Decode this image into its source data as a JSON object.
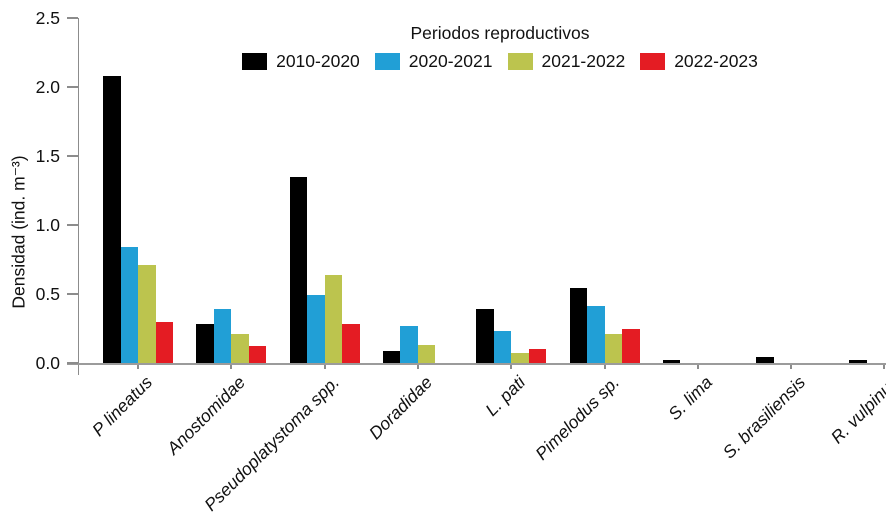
{
  "chart_data": {
    "type": "bar",
    "legend_title": "Periodos reproductivos",
    "ylabel": "Densidad (ind. m⁻³)",
    "ylim": [
      0,
      2.5
    ],
    "ytick_labels": [
      "0.0",
      "0.5",
      "1.0",
      "1.5",
      "2.0",
      "2.5"
    ],
    "grid": false,
    "legend_position": "top-center",
    "categories": [
      "P lineatus",
      "Anostomidae",
      "Pseudoplatystoma spp.",
      "Doradidae",
      "L. pati",
      "Pimelodus sp.",
      "S. lima",
      "S. brasiliensis",
      "R. vulpinus"
    ],
    "series": [
      {
        "name": "2010-2020",
        "color": "#000000",
        "values": [
          2.08,
          0.28,
          1.35,
          0.09,
          0.39,
          0.54,
          0.02,
          0.04,
          0.02
        ]
      },
      {
        "name": "2020-2021",
        "color": "#219FD6",
        "values": [
          0.84,
          0.39,
          0.49,
          0.27,
          0.23,
          0.41,
          0,
          0,
          0
        ]
      },
      {
        "name": "2021-2022",
        "color": "#BCC44E",
        "values": [
          0.71,
          0.21,
          0.64,
          0.13,
          0.07,
          0.21,
          0,
          0,
          0
        ]
      },
      {
        "name": "2022-2023",
        "color": "#E41C23",
        "values": [
          0.3,
          0.12,
          0.28,
          0,
          0.1,
          0.25,
          0,
          0,
          0
        ]
      }
    ]
  }
}
